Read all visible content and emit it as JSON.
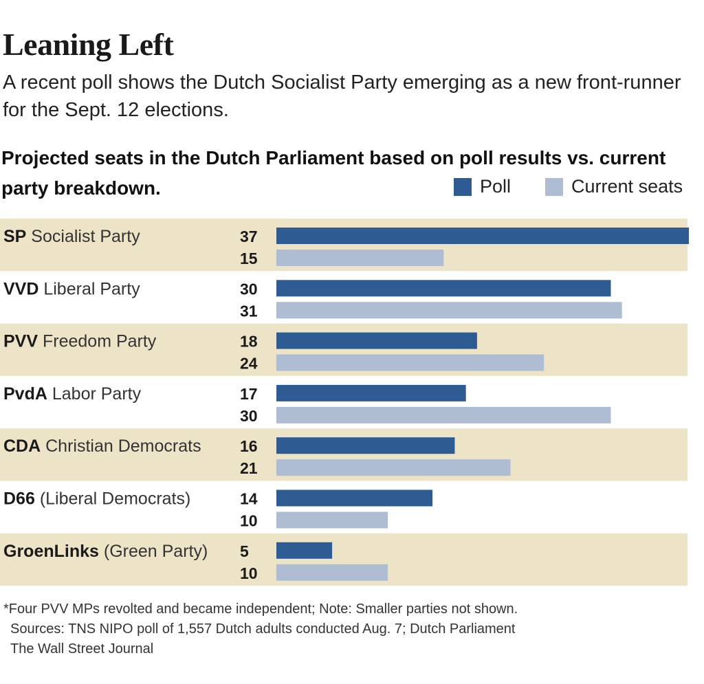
{
  "title": "Leaning Left",
  "subtitle": "A recent poll shows the Dutch Socialist Party emerging as a new front-runner for the Sept. 12 elections.",
  "heading": "Projected seats in the Dutch Parliament based on poll results vs. current party breakdown.",
  "legend": {
    "poll": "Poll",
    "current": "Current seats"
  },
  "colors": {
    "poll": "#2e5b92",
    "current": "#aebdd2",
    "band": "#ede4c8",
    "text": "#1a1a1a"
  },
  "chart_data": {
    "type": "bar",
    "orientation": "horizontal",
    "categories": [
      {
        "abbr": "SP",
        "name": " Socialist Party"
      },
      {
        "abbr": "VVD",
        "name": " Liberal Party"
      },
      {
        "abbr": "PVV",
        "name": " Freedom Party"
      },
      {
        "abbr": "PvdA",
        "name": " Labor Party"
      },
      {
        "abbr": "CDA",
        "name": " Christian Democrats"
      },
      {
        "abbr": "D66",
        "name": " (Liberal Democrats)"
      },
      {
        "abbr": "GroenLinks",
        "name": " (Green Party)"
      }
    ],
    "series": [
      {
        "name": "Poll",
        "values": [
          37,
          30,
          18,
          17,
          16,
          14,
          5
        ]
      },
      {
        "name": "Current seats",
        "values": [
          15,
          31,
          24,
          30,
          21,
          10,
          10
        ]
      }
    ],
    "xlim": [
      0,
      37
    ],
    "grid": false,
    "legend_position": "top-right",
    "data_labels": true
  },
  "footnotes": [
    "*Four PVV MPs revolted and became independent; Note: Smaller parties not shown.",
    "Sources: TNS NIPO poll of 1,557 Dutch adults conducted Aug. 7; Dutch Parliament",
    "The Wall Street Journal"
  ]
}
